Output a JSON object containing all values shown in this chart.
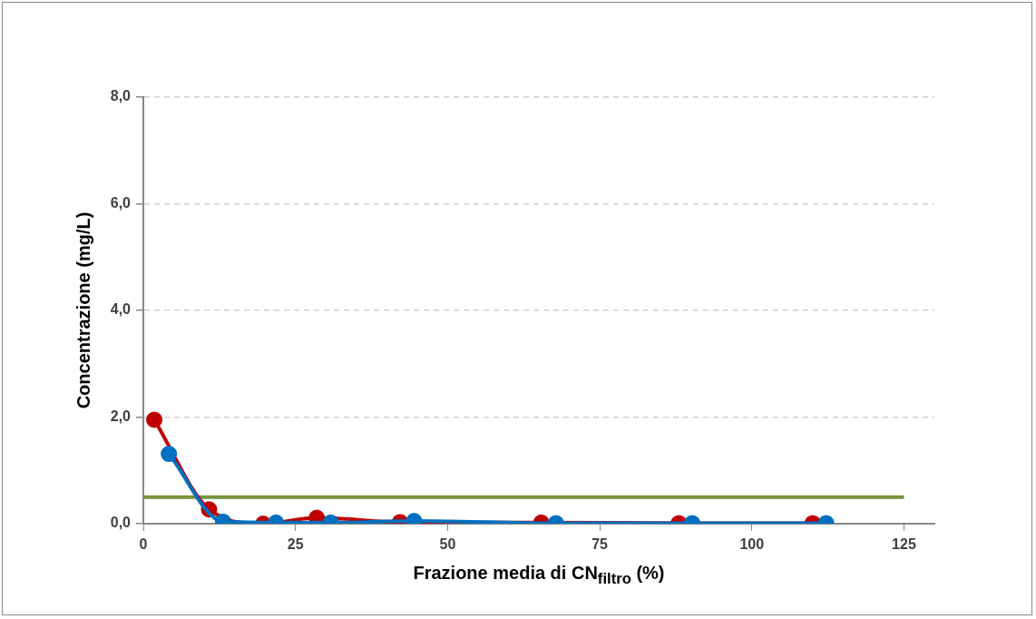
{
  "chart_data": {
    "type": "line",
    "xlabel": "Frazione media di CN$_{filtro}$ (%)",
    "ylabel": "Concentrazione  (mg/L)",
    "xlim": [
      0,
      130
    ],
    "xticks": [
      0,
      25,
      50,
      75,
      100,
      125
    ],
    "ylim": [
      0,
      8
    ],
    "yticks": [
      {
        "value": 0,
        "label": "0,0"
      },
      {
        "value": 2,
        "label": "2,0"
      },
      {
        "value": 4,
        "label": "4,0"
      },
      {
        "value": 6,
        "label": "6,0"
      },
      {
        "value": 8,
        "label": "8,0"
      }
    ],
    "grid": "y",
    "legend": false,
    "marker": "circle",
    "line_style": "solid",
    "ref_lines": [
      {
        "axis": "y",
        "value": 0.5,
        "color": "#77933c"
      }
    ],
    "series": [
      {
        "color": "#c00000",
        "x": [
          1.8,
          10.8,
          19.7,
          28.5,
          42.2,
          65.4,
          88,
          110
        ],
        "values": [
          1.95,
          0.27,
          0.0,
          0.11,
          0.03,
          0.02,
          0.01,
          0.01
        ]
      },
      {
        "color": "#0070c0",
        "x": [
          4.2,
          13.1,
          21.8,
          30.8,
          44.5,
          67.8,
          90.2,
          112.2
        ],
        "values": [
          1.31,
          0.04,
          0.02,
          0.02,
          0.05,
          0.01,
          0.01,
          0.01
        ]
      }
    ]
  }
}
